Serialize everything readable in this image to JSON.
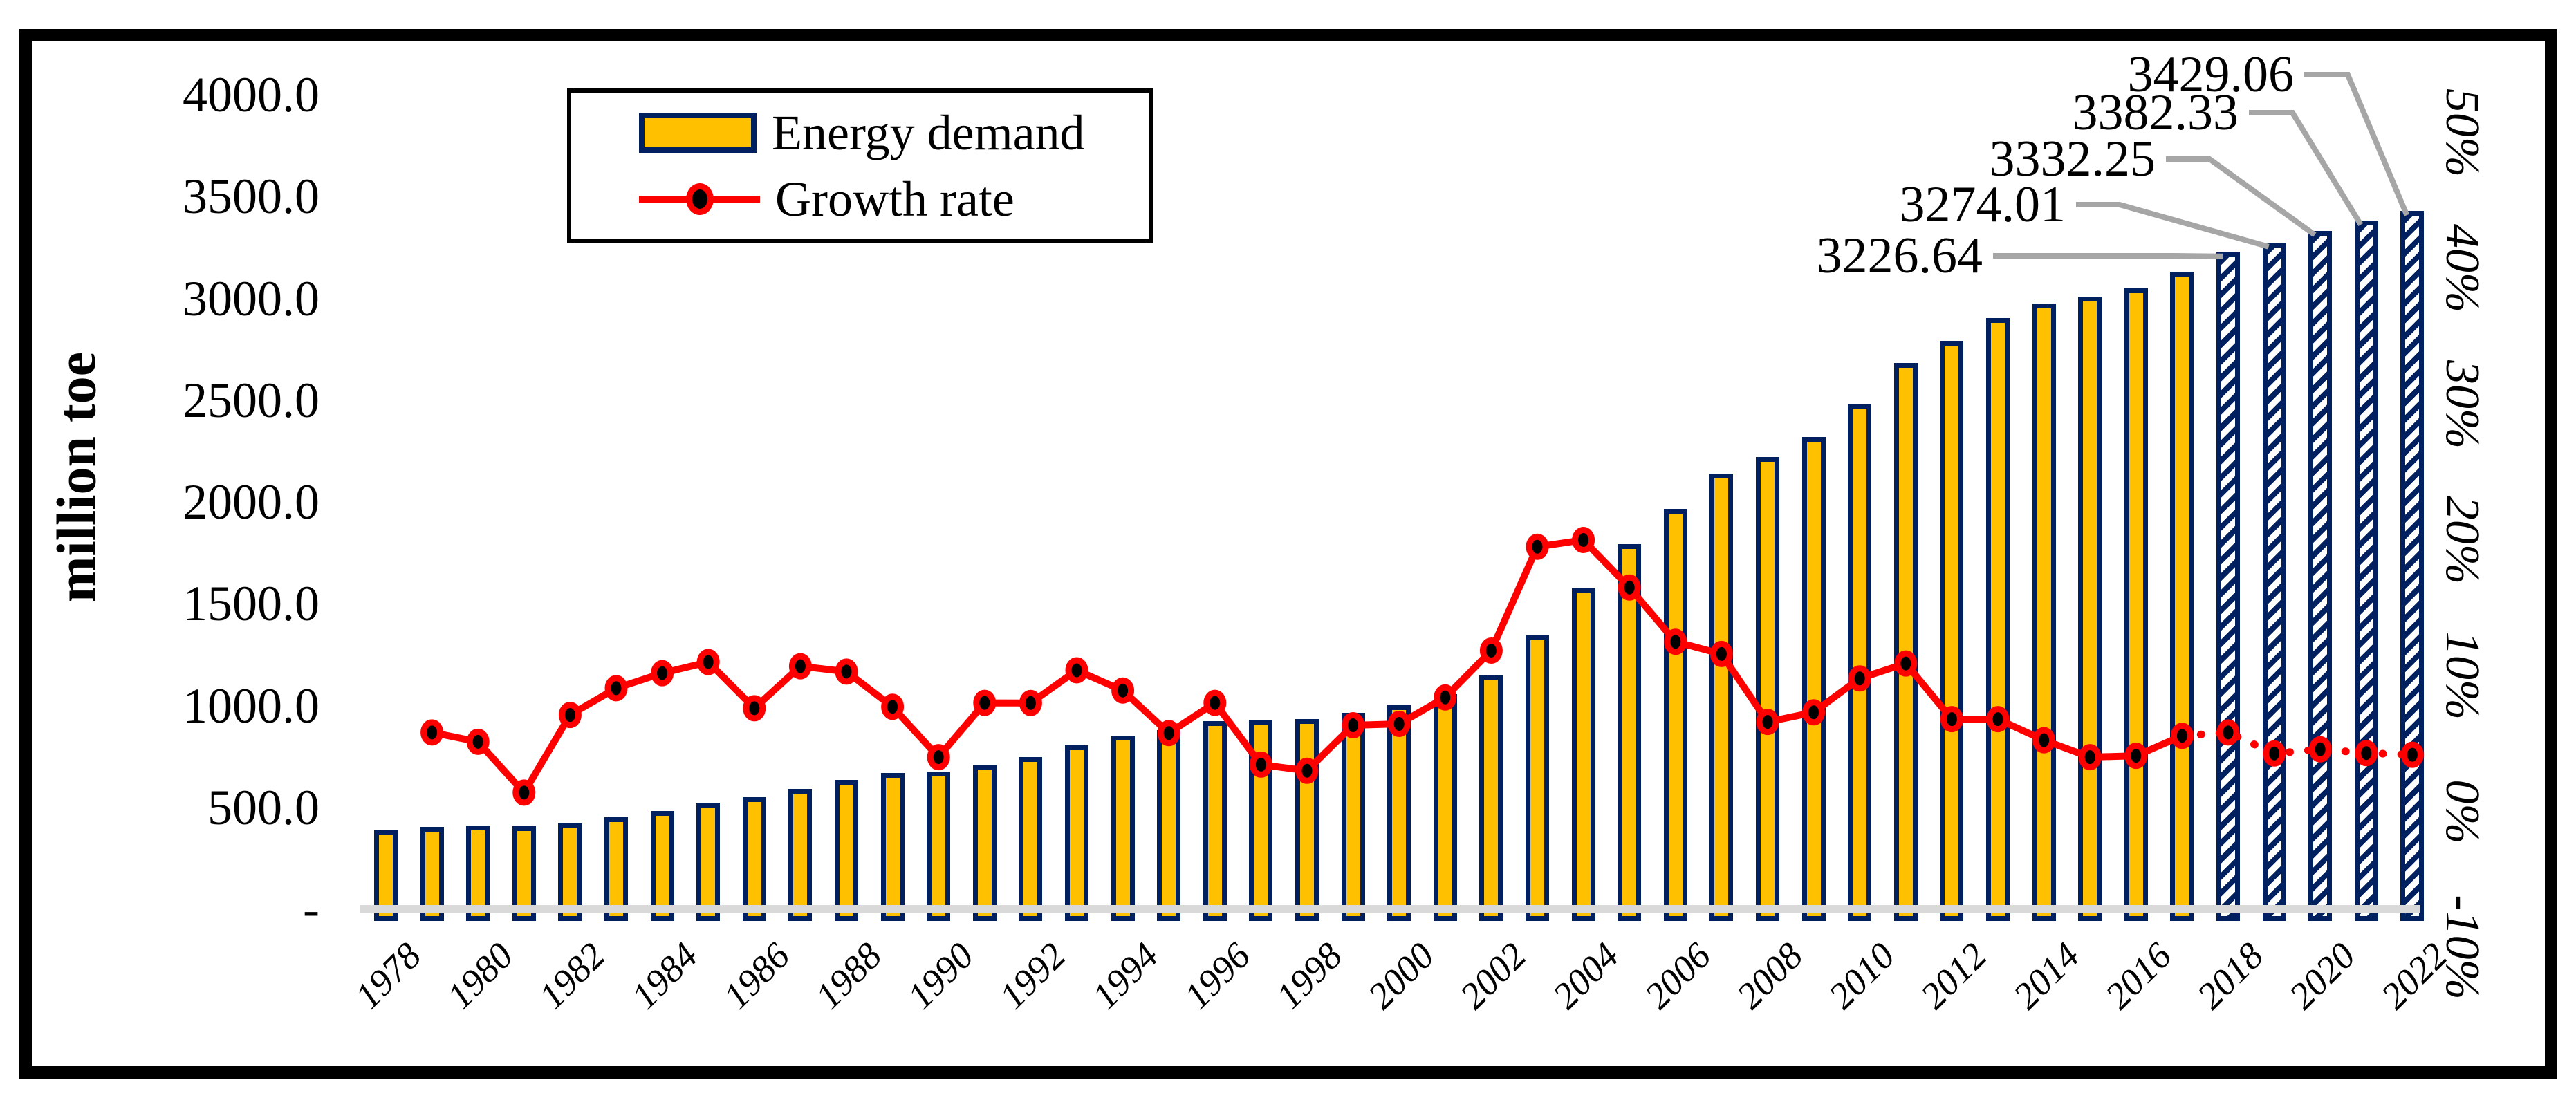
{
  "chart_data": {
    "type": "bar+line combo",
    "title": "",
    "left_axis": {
      "label": "million toe",
      "min": 0,
      "max": 4000,
      "ticks": [
        {
          "label": "4000.0",
          "value": 4000
        },
        {
          "label": "3500.0",
          "value": 3500
        },
        {
          "label": "3000.0",
          "value": 3000
        },
        {
          "label": "2500.0",
          "value": 2500
        },
        {
          "label": "2000.0",
          "value": 2000
        },
        {
          "label": "1500.0",
          "value": 1500
        },
        {
          "label": "1000.0",
          "value": 1000
        },
        {
          "label": "500.0",
          "value": 500
        },
        {
          "label": "-",
          "value": 0
        }
      ]
    },
    "right_axis": {
      "min": -10,
      "max": 50,
      "ticks": [
        {
          "label": "50%",
          "value": 50
        },
        {
          "label": "40%",
          "value": 40
        },
        {
          "label": "30%",
          "value": 30
        },
        {
          "label": "20%",
          "value": 20
        },
        {
          "label": "10%",
          "value": 10
        },
        {
          "label": "0%",
          "value": 0
        },
        {
          "label": "-10%",
          "value": -10
        }
      ]
    },
    "x_axis": {
      "tick_years": [
        1978,
        1980,
        1982,
        1984,
        1986,
        1988,
        1990,
        1992,
        1994,
        1996,
        1998,
        2000,
        2002,
        2004,
        2006,
        2008,
        2010,
        2012,
        2014,
        2016,
        2018,
        2020,
        2022
      ]
    },
    "years": [
      1978,
      1979,
      1980,
      1981,
      1982,
      1983,
      1984,
      1985,
      1986,
      1987,
      1988,
      1989,
      1990,
      1991,
      1992,
      1993,
      1994,
      1995,
      1996,
      1997,
      1998,
      1999,
      2000,
      2001,
      2002,
      2003,
      2004,
      2005,
      2006,
      2007,
      2008,
      2009,
      2010,
      2011,
      2012,
      2013,
      2014,
      2015,
      2016,
      2017,
      2018,
      2019,
      2020,
      2021,
      2022
    ],
    "series": [
      {
        "name": "Energy demand",
        "type": "bar",
        "unit": "million toe",
        "forecast_start_year": 2018,
        "values": [
          390.8,
          402.6,
          412.0,
          406.2,
          423.7,
          450.3,
          483.6,
          523.3,
          548.4,
          591.7,
          636.1,
          667.3,
          675.3,
          710.4,
          747.3,
          804.1,
          853.2,
          878.6,
          924.3,
          930.3,
          932.2,
          965.3,
          1000.5,
          1056.5,
          1152.1,
          1344.5,
          1575.8,
          1791.6,
          1965.4,
          2138.4,
          2219.7,
          2319.5,
          2481.9,
          2682.9,
          2790.2,
          2901.8,
          2972.9,
          3008.6,
          3047.7,
          3132.0,
          3226.64,
          3274.01,
          3332.25,
          3382.33,
          3429.06
        ]
      },
      {
        "name": "Growth rate",
        "type": "line",
        "unit": "%",
        "dotted_from_year": 2017,
        "values": [
          null,
          3.02,
          2.33,
          -1.41,
          4.31,
          6.28,
          7.39,
          8.21,
          4.8,
          7.9,
          7.5,
          4.91,
          1.2,
          5.2,
          5.19,
          7.6,
          6.11,
          2.98,
          5.2,
          0.65,
          0.2,
          3.55,
          3.65,
          5.6,
          9.05,
          16.7,
          17.2,
          13.7,
          9.7,
          8.8,
          3.8,
          4.5,
          7.0,
          8.1,
          4.0,
          4.0,
          2.45,
          1.2,
          1.3,
          2.77,
          3.02,
          1.47,
          1.78,
          1.5,
          1.38
        ]
      }
    ],
    "annotations": [
      {
        "label": "3226.64",
        "year": 2018
      },
      {
        "label": "3274.01",
        "year": 2019
      },
      {
        "label": "3332.25",
        "year": 2020
      },
      {
        "label": "3382.33",
        "year": 2021
      },
      {
        "label": "3429.06",
        "year": 2022
      }
    ],
    "legend": {
      "items": [
        {
          "label": "Energy demand"
        },
        {
          "label": "Growth rate"
        }
      ]
    },
    "colors": {
      "bar_fill": "#FFC000",
      "bar_border": "#002060",
      "line": "#FF0000",
      "marker_fill": "#000000",
      "leader": "#A6A6A6",
      "baseline": "#D9D9D9"
    }
  }
}
